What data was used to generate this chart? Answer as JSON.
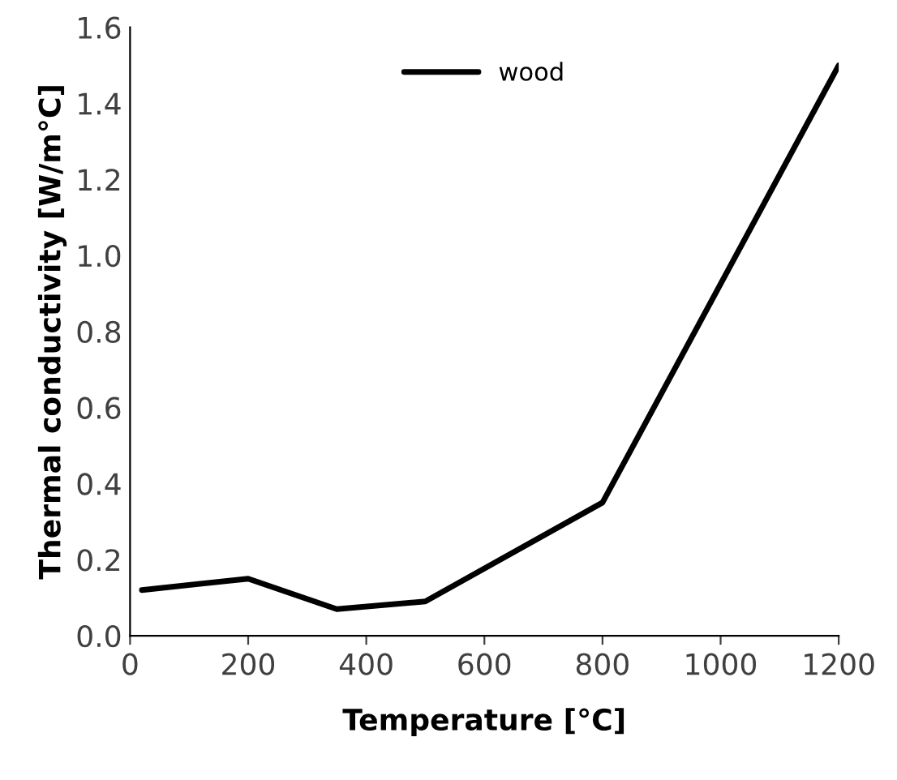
{
  "chart_data": {
    "type": "line",
    "xlabel": "Temperature [°C]",
    "ylabel": "Thermal conductivity [W/m°C]",
    "x": [
      20,
      200,
      350,
      500,
      800,
      1200
    ],
    "series": [
      {
        "name": "wood",
        "color": "#000000",
        "values": [
          0.12,
          0.15,
          0.07,
          0.09,
          0.35,
          1.5
        ]
      }
    ],
    "xlim": [
      0,
      1200
    ],
    "xticks": [
      0,
      200,
      400,
      600,
      800,
      1000,
      1200
    ],
    "ylim": [
      0,
      1.6
    ],
    "yticks": [
      {
        "value": 0,
        "label": "0.0"
      },
      {
        "value": 0.2,
        "label": "0.2"
      },
      {
        "value": 0.4,
        "label": "0.4"
      },
      {
        "value": 0.6,
        "label": "0.6"
      },
      {
        "value": 0.8,
        "label": "0.8"
      },
      {
        "value": 1.0,
        "label": "1.0"
      },
      {
        "value": 1.2,
        "label": "1.2"
      },
      {
        "value": 1.4,
        "label": "1.4"
      },
      {
        "value": 1.6,
        "label": "1.6"
      }
    ],
    "grid": false,
    "legend": "top",
    "marker": "none",
    "line_style": "solid"
  }
}
